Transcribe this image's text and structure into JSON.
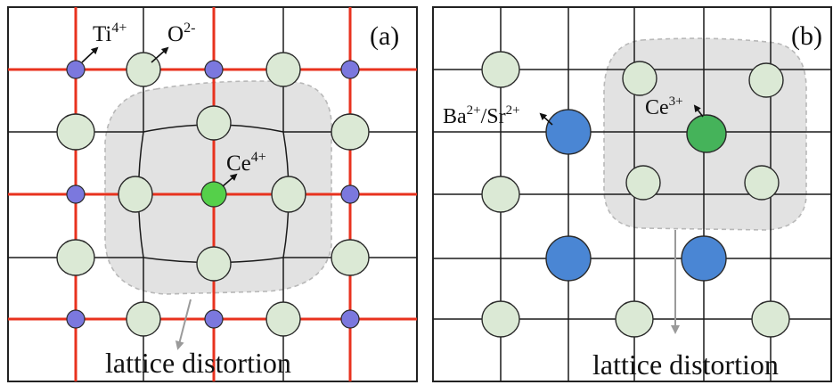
{
  "panel_a": {
    "label": "(a)",
    "ion_labels": {
      "ti": "Ti",
      "ti_charge": "4+",
      "o": "O",
      "o_charge": "2-",
      "ce": "Ce",
      "ce_charge": "4+"
    },
    "distortion_label": "lattice distortion"
  },
  "panel_b": {
    "label": "(b)",
    "ion_labels": {
      "basr": "Ba",
      "basr_charge1": "2+",
      "basr_sep": "/Sr",
      "basr_charge2": "2+",
      "ce": "Ce",
      "ce_charge": "3+"
    },
    "distortion_label": "lattice distortion"
  },
  "colors": {
    "red_line": "#e8321e",
    "grid_line": "#1a1a1a",
    "oxygen": "#dbe9d5",
    "titanium": "#7b78de",
    "cerium_a": "#55d04a",
    "cerium_b": "#45b35a",
    "basr": "#4a86d4",
    "distortion_zone": "#e2e2e2",
    "arrow_gray": "#9a9a9a"
  }
}
